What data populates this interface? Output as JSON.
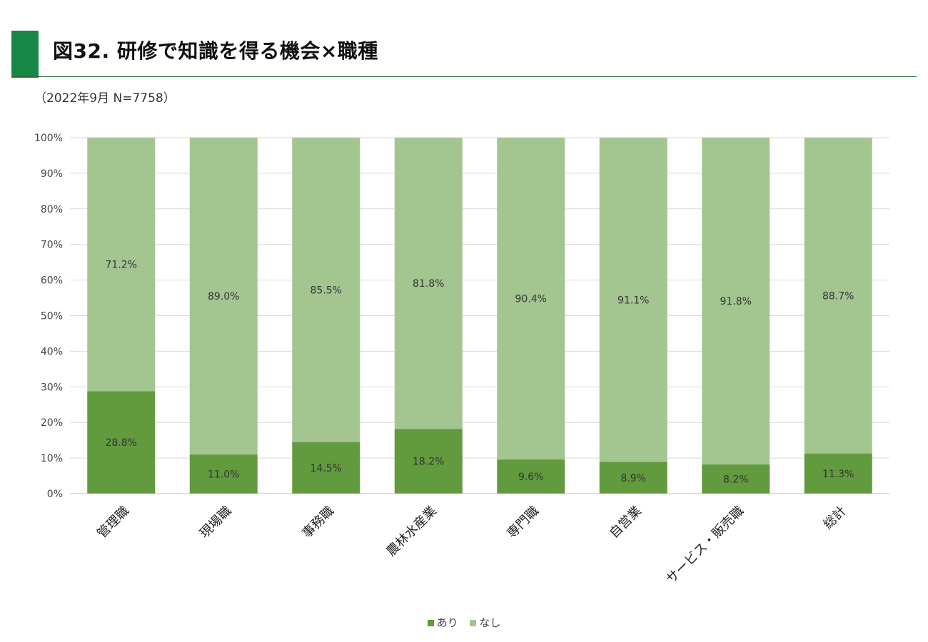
{
  "header": {
    "title": "図32. 研修で知識を得る機会×職種",
    "subtitle": "（2022年9月 N=7758）"
  },
  "colors": {
    "title_accent": "#178746",
    "series_ari": "#629A3E",
    "series_nashi": "#A3C590",
    "grid": "#d9d9d9"
  },
  "chart_data": {
    "type": "bar",
    "stacked": true,
    "categories": [
      "管理職",
      "現場職",
      "事務職",
      "農林水産業",
      "専門職",
      "自営業",
      "サービス・販売職",
      "総計"
    ],
    "series": [
      {
        "name": "あり",
        "values": [
          28.8,
          11.0,
          14.5,
          18.2,
          9.6,
          8.9,
          8.2,
          11.3
        ],
        "labels": [
          "28.8%",
          "11.0%",
          "14.5%",
          "18.2%",
          "9.6%",
          "8.9%",
          "8.2%",
          "11.3%"
        ]
      },
      {
        "name": "なし",
        "values": [
          71.2,
          89.0,
          85.5,
          81.8,
          90.4,
          91.1,
          91.8,
          88.7
        ],
        "labels": [
          "71.2%",
          "89.0%",
          "85.5%",
          "81.8%",
          "90.4%",
          "91.1%",
          "91.8%",
          "88.7%"
        ]
      }
    ],
    "ylim": [
      0,
      100
    ],
    "yticks": [
      "0%",
      "10%",
      "20%",
      "30%",
      "40%",
      "50%",
      "60%",
      "70%",
      "80%",
      "90%",
      "100%"
    ],
    "grid": true,
    "legend": "bottom"
  }
}
